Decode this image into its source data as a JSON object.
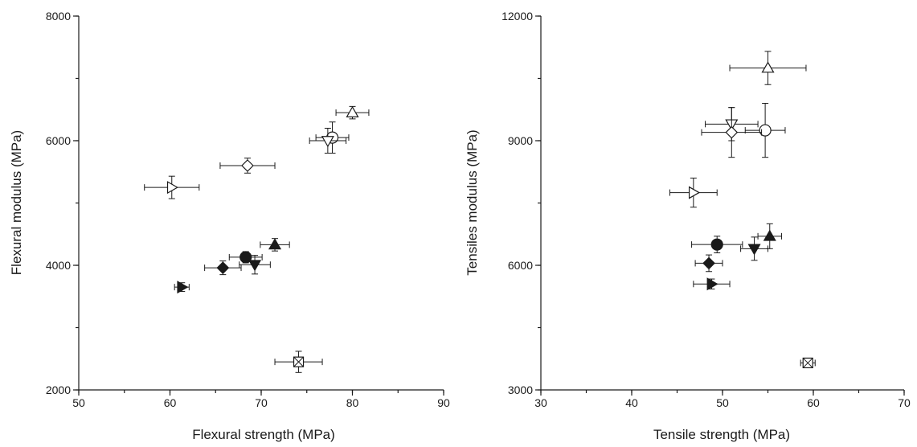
{
  "chart_data": [
    {
      "type": "scatter",
      "xlabel": "Flexural strength (MPa)",
      "ylabel": "Flexural modulus (MPa)",
      "xlim": [
        50,
        90
      ],
      "ylim": [
        2000,
        8000
      ],
      "x_major_ticks": [
        50,
        60,
        70,
        80,
        90
      ],
      "y_major_ticks": [
        2000,
        4000,
        6000,
        8000
      ],
      "x_tick_labels": [
        "50",
        "60",
        "70",
        "80",
        "90"
      ],
      "y_tick_labels": [
        "2000",
        "4000",
        "6000",
        "8000"
      ],
      "x_minor_step": 5,
      "y_minor_step": 1000,
      "grid": false,
      "points": [
        {
          "marker": "triangle-up-open",
          "x": 80.0,
          "y": 6450,
          "xerr": 1.8,
          "yerr": 100
        },
        {
          "marker": "circle-open",
          "x": 77.8,
          "y": 6050,
          "xerr": 1.8,
          "yerr": 250
        },
        {
          "marker": "triangle-down-open",
          "x": 77.3,
          "y": 6000,
          "xerr": 2.0,
          "yerr": 200
        },
        {
          "marker": "diamond-open",
          "x": 68.5,
          "y": 5600,
          "xerr": 3.0,
          "yerr": 120
        },
        {
          "marker": "triangle-right-open",
          "x": 60.2,
          "y": 5250,
          "xerr": 3.0,
          "yerr": 180
        },
        {
          "marker": "triangle-up-filled",
          "x": 71.5,
          "y": 4330,
          "xerr": 1.6,
          "yerr": 100
        },
        {
          "marker": "circle-filled",
          "x": 68.3,
          "y": 4130,
          "xerr": 1.8,
          "yerr": 90
        },
        {
          "marker": "triangle-down-filled",
          "x": 69.3,
          "y": 4010,
          "xerr": 1.7,
          "yerr": 150
        },
        {
          "marker": "diamond-filled",
          "x": 65.8,
          "y": 3960,
          "xerr": 2.0,
          "yerr": 110
        },
        {
          "marker": "triangle-right-filled",
          "x": 61.3,
          "y": 3650,
          "xerr": 0.8,
          "yerr": 70
        },
        {
          "marker": "square-x-open",
          "x": 74.1,
          "y": 2450,
          "xerr": 2.6,
          "yerr": 170
        }
      ]
    },
    {
      "type": "scatter",
      "xlabel": "Tensile strength (MPa)",
      "ylabel": "Tensiles modulus (MPa)",
      "xlim": [
        30,
        70
      ],
      "ylim": [
        3000,
        12000
      ],
      "x_major_ticks": [
        30,
        40,
        50,
        60,
        70
      ],
      "y_major_ticks": [
        3000,
        6000,
        9000,
        12000
      ],
      "x_tick_labels": [
        "30",
        "40",
        "50",
        "60",
        "70"
      ],
      "y_tick_labels": [
        "3000",
        "6000",
        "9000",
        "12000"
      ],
      "x_minor_step": 5,
      "y_minor_step": 1500,
      "grid": false,
      "points": [
        {
          "marker": "triangle-up-open",
          "x": 55.0,
          "y": 10750,
          "xerr": 4.2,
          "yerr": 400
        },
        {
          "marker": "circle-open",
          "x": 54.7,
          "y": 9250,
          "xerr": 2.2,
          "yerr": 650
        },
        {
          "marker": "triangle-down-open",
          "x": 51.0,
          "y": 9400,
          "xerr": 2.9,
          "yerr": 400
        },
        {
          "marker": "diamond-open",
          "x": 51.0,
          "y": 9200,
          "xerr": 3.3,
          "yerr": 600
        },
        {
          "marker": "triangle-right-open",
          "x": 46.8,
          "y": 7750,
          "xerr": 2.6,
          "yerr": 350
        },
        {
          "marker": "triangle-up-filled",
          "x": 55.2,
          "y": 6700,
          "xerr": 1.3,
          "yerr": 300
        },
        {
          "marker": "circle-filled",
          "x": 49.4,
          "y": 6500,
          "xerr": 2.8,
          "yerr": 200
        },
        {
          "marker": "triangle-down-filled",
          "x": 53.5,
          "y": 6400,
          "xerr": 1.5,
          "yerr": 280
        },
        {
          "marker": "diamond-filled",
          "x": 48.5,
          "y": 6050,
          "xerr": 1.5,
          "yerr": 200
        },
        {
          "marker": "triangle-right-filled",
          "x": 48.8,
          "y": 5550,
          "xerr": 2.0,
          "yerr": 120
        },
        {
          "marker": "square-x-open",
          "x": 59.4,
          "y": 3650,
          "xerr": 0.8,
          "yerr": 80
        }
      ]
    }
  ],
  "colors": {
    "ink": "#1a1a1a",
    "background": "#ffffff",
    "marker_fill_open": "#ffffff"
  }
}
